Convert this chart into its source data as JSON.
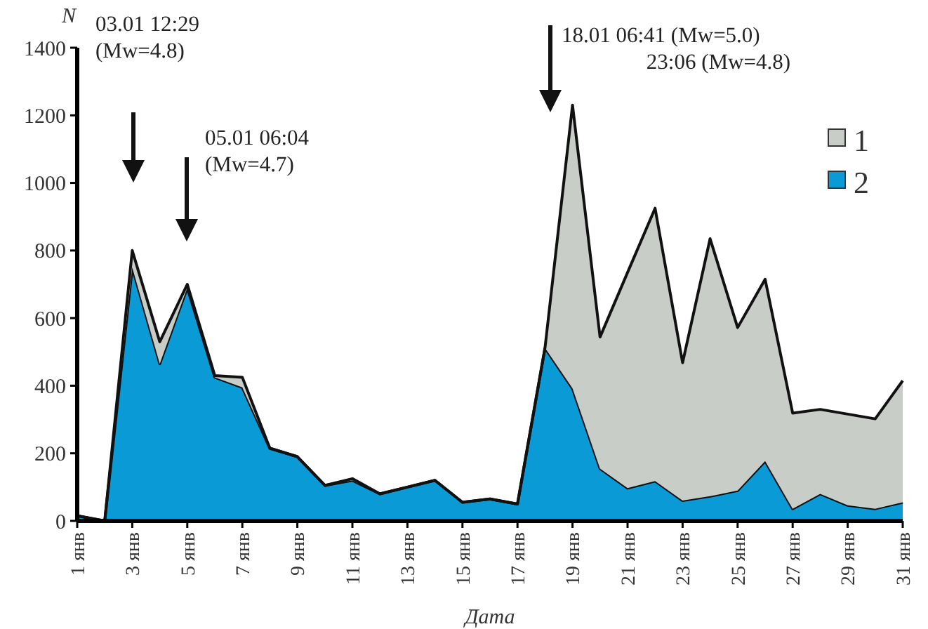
{
  "chart_data": {
    "type": "area",
    "stacked": true,
    "xlabel": "Дата",
    "ylabel": "N",
    "categories": [
      "1 янв",
      null,
      "3 янв",
      null,
      "5 янв",
      null,
      "7 янв",
      null,
      "9 янв",
      null,
      "11 янв",
      null,
      "13 янв",
      null,
      "15 янв",
      null,
      "17 янв",
      null,
      "19 янв",
      null,
      "21 янв",
      null,
      "23 янв",
      null,
      "25 янв",
      null,
      "27 янв",
      null,
      "29 янв",
      null,
      "31 янв"
    ],
    "series": [
      {
        "name": "2",
        "color": "#0a9ad6",
        "values": [
          15,
          0,
          750,
          465,
          690,
          425,
          395,
          215,
          190,
          105,
          120,
          80,
          100,
          120,
          55,
          65,
          50,
          512,
          392,
          155,
          97,
          118,
          60,
          73,
          90,
          177,
          36,
          80,
          46,
          36,
          55
        ]
      },
      {
        "name": "1",
        "color": "#c8cdc8",
        "values": [
          0,
          0,
          50,
          65,
          10,
          5,
          30,
          0,
          0,
          0,
          5,
          0,
          0,
          0,
          0,
          0,
          0,
          0,
          838,
          389,
          638,
          807,
          408,
          762,
          482,
          538,
          283,
          250,
          270,
          266,
          360
        ]
      }
    ],
    "ylim": [
      0,
      1400
    ],
    "yticks": [
      0,
      200,
      400,
      600,
      800,
      1000,
      1200,
      1400
    ],
    "grid": false,
    "legend": "top right",
    "annotations": [
      "03.01 12:29\n(Mw=4.8)",
      "05.01 06:04\n(Mw=4.7)",
      "18.01 06:41 (Mw=5.0)\n23:06 (Mw=4.8)"
    ]
  }
}
